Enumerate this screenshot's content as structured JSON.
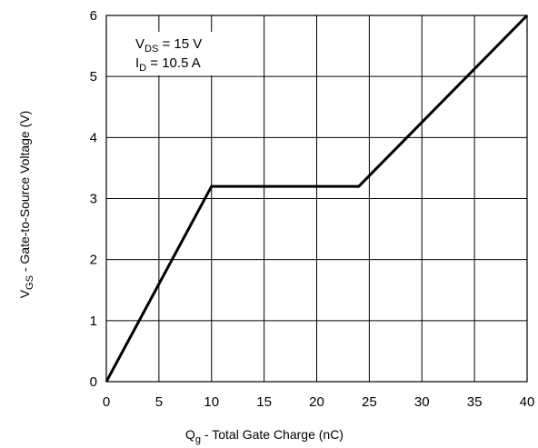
{
  "chart_data": {
    "type": "line",
    "xlabel": {
      "main": "Q",
      "sub": "g",
      "rest": " - Total Gate Charge (nC)"
    },
    "ylabel": {
      "main": "V",
      "sub": "GS",
      "rest": " - Gate-to-Source Voltage (V)"
    },
    "xlim": [
      0,
      40
    ],
    "ylim": [
      0,
      6
    ],
    "xticks": [
      "0",
      "5",
      "10",
      "15",
      "20",
      "25",
      "30",
      "35",
      "40"
    ],
    "yticks": [
      "0",
      "1",
      "2",
      "3",
      "4",
      "5",
      "6"
    ],
    "grid": true,
    "series": [
      {
        "x": [
          0,
          10,
          24,
          40
        ],
        "y": [
          0,
          3.2,
          3.2,
          6.0
        ]
      }
    ],
    "annotations": [
      {
        "main": "V",
        "sub": "DS",
        "rest": " = 15 V"
      },
      {
        "main": "I",
        "sub": "D",
        "rest": " = 10.5 A"
      }
    ]
  }
}
